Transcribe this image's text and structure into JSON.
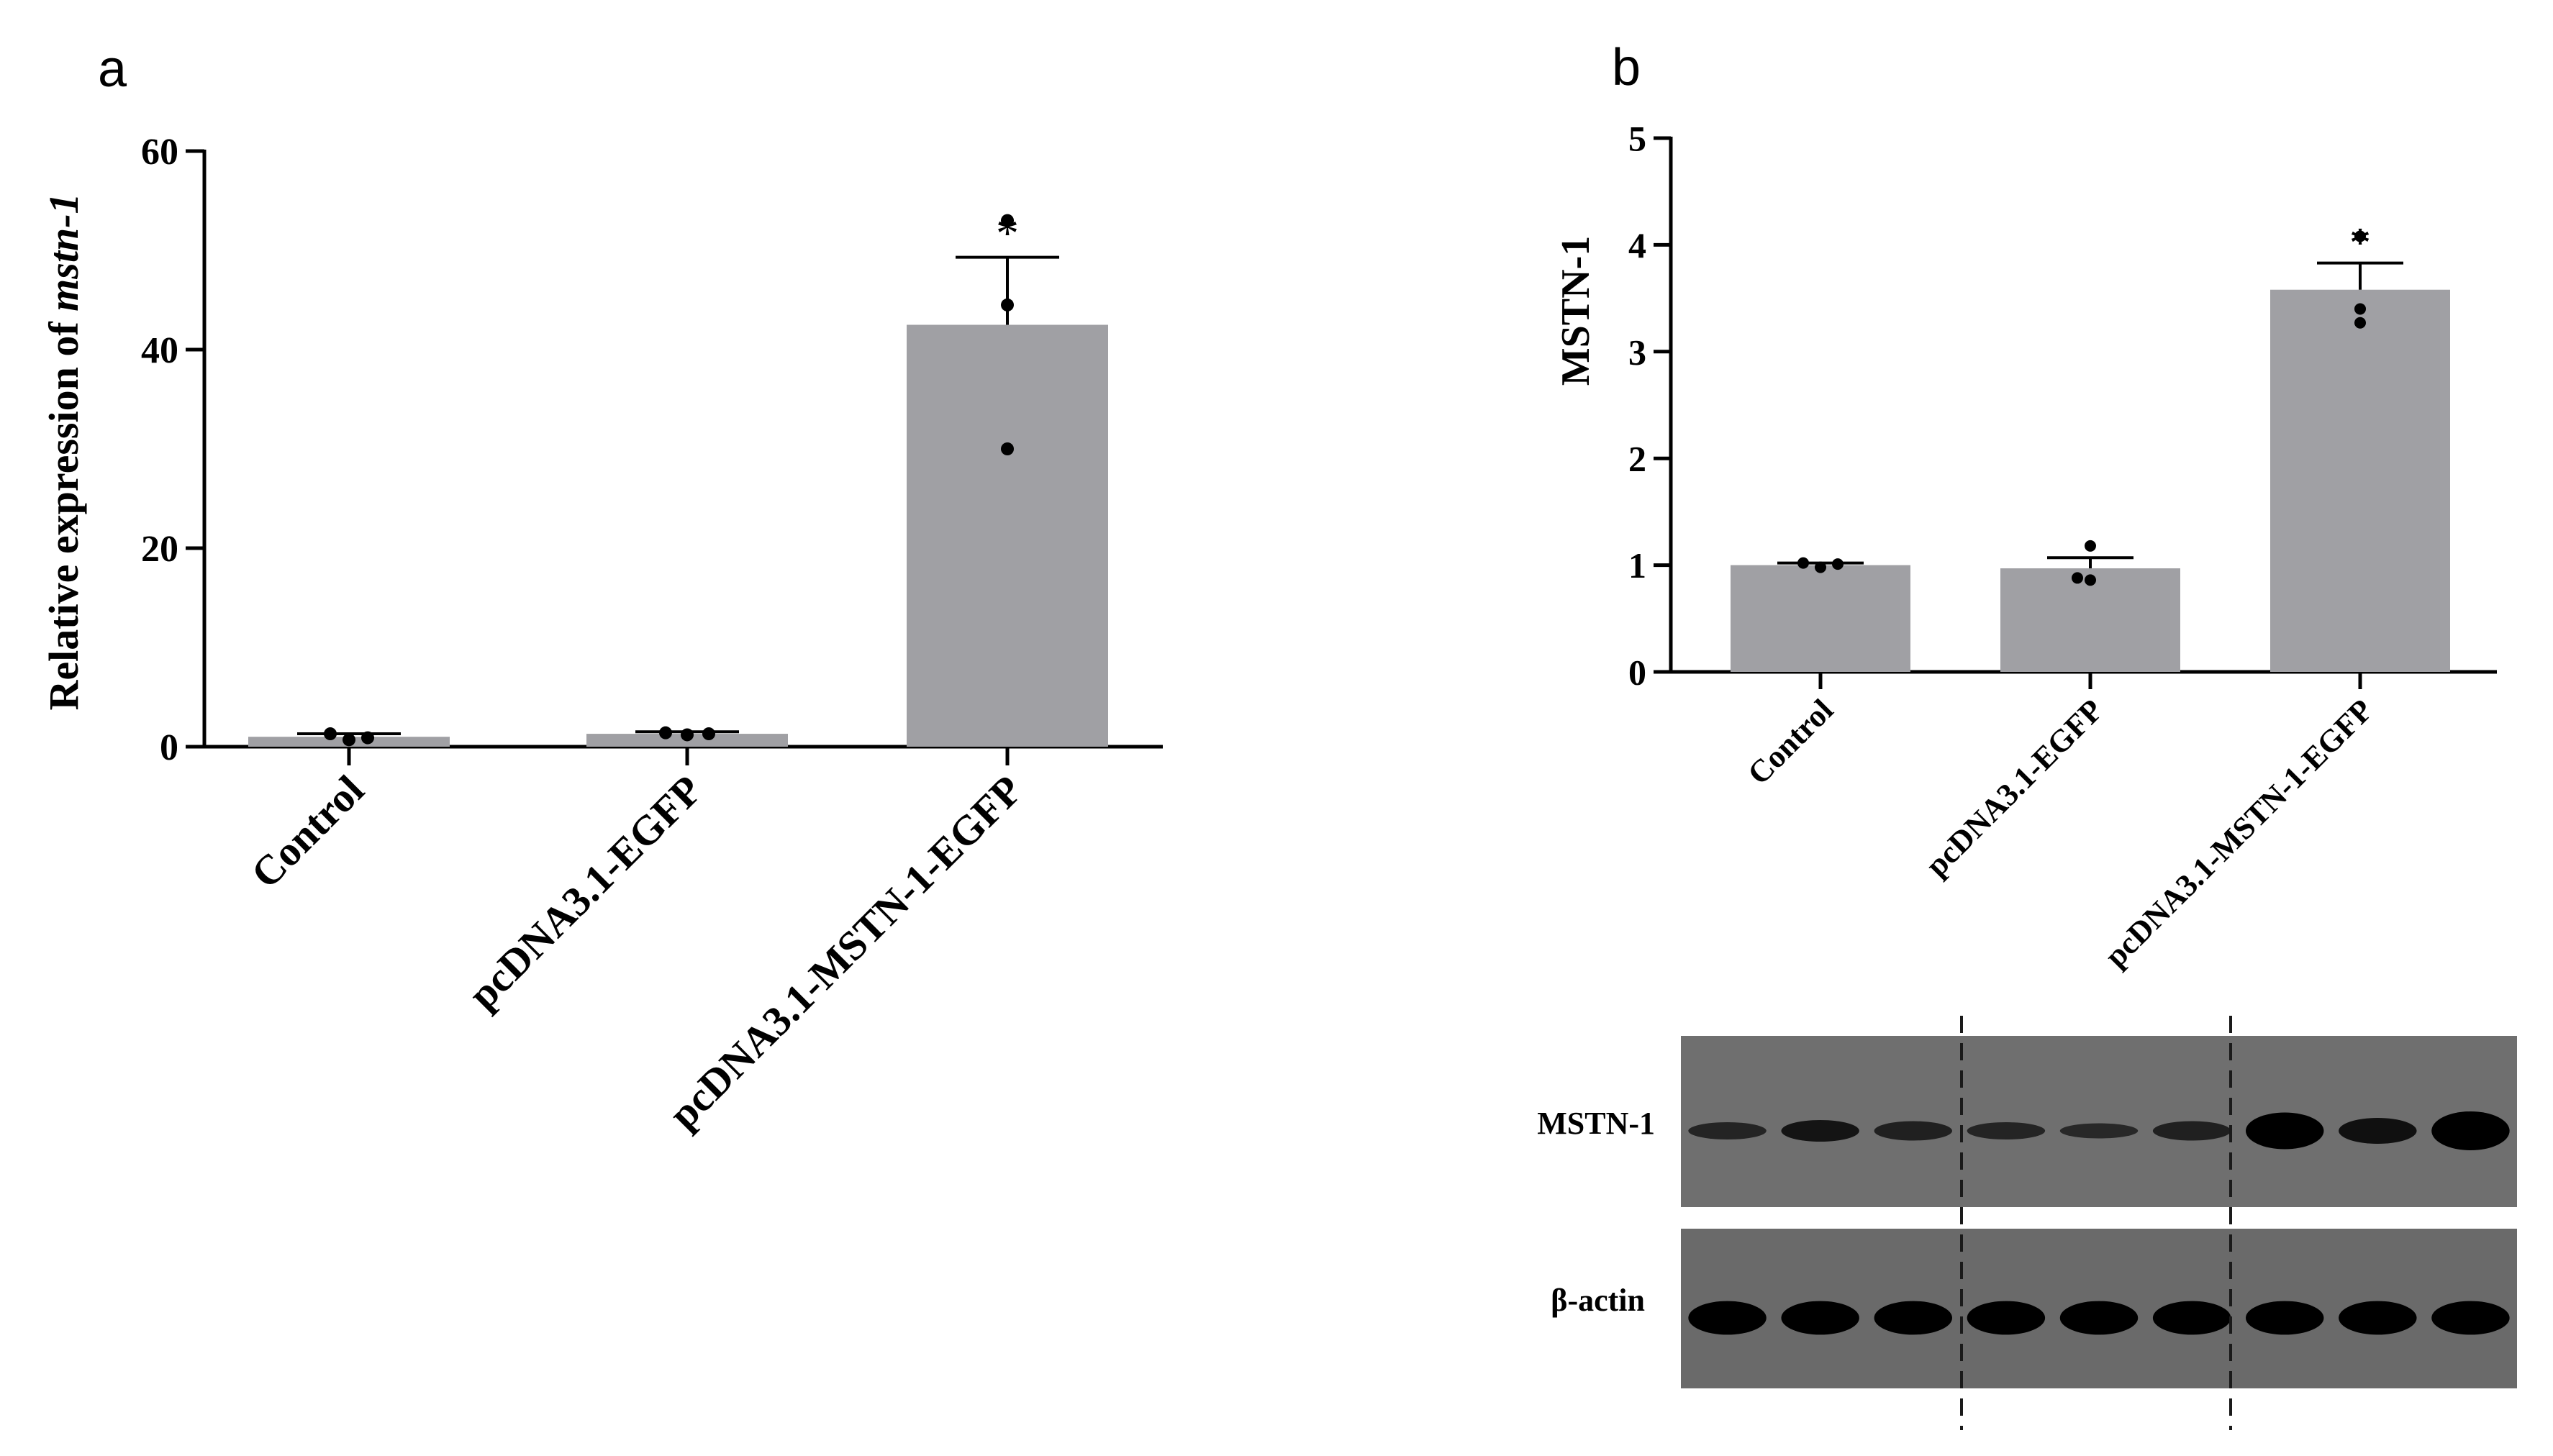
{
  "panels": {
    "a": {
      "letter": "a"
    },
    "b": {
      "letter": "b"
    }
  },
  "colors": {
    "bar": "#a0a0a4",
    "axis": "#000000",
    "point": "#000000"
  },
  "chart_data": [
    {
      "type": "bar",
      "panel": "a",
      "categories": [
        "Control",
        "pcDNA3.1-EGFP",
        "pcDNA3.1-MSTN-1-EGFP"
      ],
      "values": [
        1.0,
        1.3,
        42.5
      ],
      "errors": [
        0.3,
        0.2,
        6.8
      ],
      "points": [
        [
          1.3,
          0.7,
          0.9
        ],
        [
          1.4,
          1.2,
          1.3
        ],
        [
          53.0,
          44.5,
          30.0
        ]
      ],
      "significance": [
        "",
        "",
        "*"
      ],
      "ylabel_prefix": "Relative expression of ",
      "ylabel_italic": "mstn-1",
      "ylim": [
        0,
        60
      ],
      "yticks": [
        0,
        20,
        40,
        60
      ],
      "grid": false,
      "legend": "none"
    },
    {
      "type": "bar",
      "panel": "b",
      "categories": [
        "Control",
        "pcDNA3.1-EGFP",
        "pcDNA3.1-MSTN-1-EGFP"
      ],
      "values": [
        1.0,
        0.97,
        3.58
      ],
      "errors": [
        0.02,
        0.1,
        0.25
      ],
      "points": [
        [
          1.02,
          0.98,
          1.01
        ],
        [
          1.18,
          0.88,
          0.86
        ],
        [
          4.08,
          3.4,
          3.27
        ]
      ],
      "significance": [
        "",
        "",
        "*"
      ],
      "ylabel": "MSTN-1",
      "ylim": [
        0,
        5
      ],
      "yticks": [
        0,
        1,
        2,
        3,
        4,
        5
      ],
      "grid": false,
      "legend": "none"
    }
  ],
  "blot": {
    "rows": [
      {
        "label": "MSTN-1",
        "band_intensity": [
          0.55,
          0.75,
          0.6,
          0.55,
          0.5,
          0.6,
          1.0,
          0.8,
          1.0
        ],
        "band_thickness": [
          0.4,
          0.5,
          0.45,
          0.4,
          0.35,
          0.45,
          0.85,
          0.6,
          0.9
        ]
      },
      {
        "label": "β-actin",
        "band_intensity": [
          1,
          1,
          1,
          1,
          1,
          1,
          1,
          1,
          1
        ],
        "band_thickness": [
          0.9,
          0.9,
          0.9,
          0.9,
          0.9,
          0.9,
          0.9,
          0.9,
          0.9
        ]
      }
    ]
  }
}
